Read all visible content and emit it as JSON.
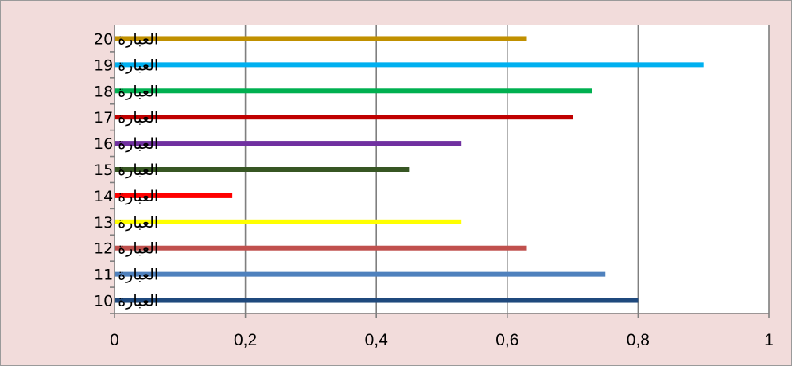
{
  "chart_data": {
    "type": "bar",
    "orientation": "horizontal",
    "categories": [
      "العبارة 10",
      "العبارة 11",
      "العبارة 12",
      "العبارة 13",
      "العبارة 14",
      "العبارة 15",
      "العبارة 16",
      "العبارة 17",
      "العبارة 18",
      "العبارة 19",
      "العبارة 20"
    ],
    "values": [
      0.8,
      0.75,
      0.63,
      0.53,
      0.18,
      0.45,
      0.53,
      0.7,
      0.73,
      0.9,
      0.63
    ],
    "colors": [
      "#1f497d",
      "#4f81bd",
      "#c0504d",
      "#ffff00",
      "#ff0000",
      "#375623",
      "#7030a0",
      "#c00000",
      "#00b050",
      "#00b0f0",
      "#c09000"
    ],
    "xlim": [
      0,
      1
    ],
    "xticks": [
      "0",
      "0,2",
      "0,4",
      "0,6",
      "0,8",
      "1"
    ],
    "grid": true,
    "legend": "none",
    "title": "",
    "xlabel": "",
    "ylabel": ""
  },
  "style": {
    "background": "#f2dcdb",
    "plot_background": "#ffffff",
    "grid_color": "#7f7f7f"
  }
}
